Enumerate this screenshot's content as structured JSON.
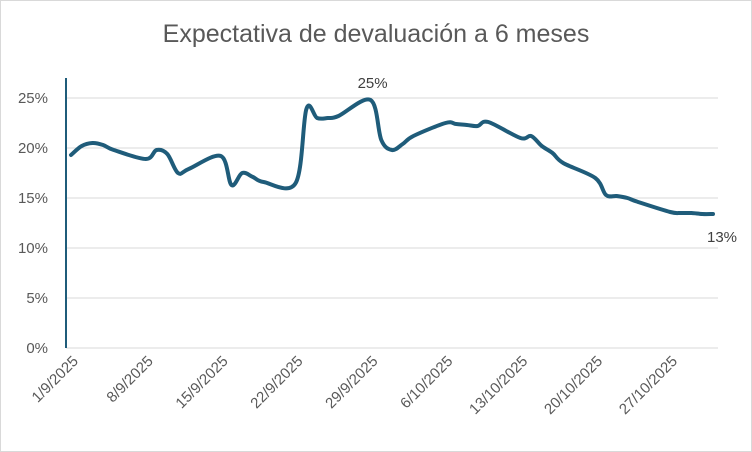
{
  "chart_data": {
    "type": "line",
    "title": "Expectativa de devaluación a 6 meses",
    "xlabel": "",
    "ylabel": "",
    "ylim": [
      0,
      25
    ],
    "yticks": [
      "0%",
      "5%",
      "10%",
      "15%",
      "20%",
      "25%"
    ],
    "yticks_values": [
      0,
      5,
      10,
      15,
      20,
      25
    ],
    "xticks": [
      "1/9/2025",
      "8/9/2025",
      "15/9/2025",
      "22/9/2025",
      "29/9/2025",
      "6/10/2025",
      "13/10/2025",
      "20/10/2025",
      "27/10/2025"
    ],
    "grid": true,
    "legend": "none",
    "line_color": "#1f5c7a",
    "series": [
      {
        "x": [
          "1/9/2025",
          "2/9/2025",
          "3/9/2025",
          "4/9/2025",
          "5/9/2025",
          "8/9/2025",
          "9/9/2025",
          "10/9/2025",
          "11/9/2025",
          "12/9/2025",
          "15/9/2025",
          "16/9/2025",
          "17/9/2025",
          "18/9/2025",
          "19/9/2025",
          "22/9/2025",
          "23/9/2025",
          "24/9/2025",
          "25/9/2025",
          "26/9/2025",
          "29/9/2025",
          "30/9/2025",
          "1/10/2025",
          "2/10/2025",
          "3/10/2025",
          "6/10/2025",
          "7/10/2025",
          "8/10/2025",
          "9/10/2025",
          "10/10/2025",
          "13/10/2025",
          "14/10/2025",
          "15/10/2025",
          "16/10/2025",
          "17/10/2025",
          "20/10/2025",
          "21/10/2025",
          "22/10/2025",
          "23/10/2025",
          "24/10/2025",
          "27/10/2025",
          "28/10/2025",
          "29/10/2025",
          "30/10/2025",
          "31/10/2025"
        ],
        "values": [
          19.3,
          20.2,
          20.5,
          20.3,
          19.8,
          18.9,
          19.8,
          19.4,
          17.5,
          17.9,
          19.2,
          16.3,
          17.5,
          17.1,
          16.6,
          16.5,
          23.9,
          23.0,
          23.0,
          23.2,
          24.8,
          20.8,
          19.8,
          20.4,
          21.2,
          22.5,
          22.4,
          22.3,
          22.2,
          22.6,
          21.0,
          21.2,
          20.2,
          19.5,
          18.5,
          17.0,
          15.3,
          15.2,
          15.0,
          14.6,
          13.6,
          13.5,
          13.5,
          13.4,
          13.4
        ]
      }
    ],
    "annotations": [
      {
        "text": "25%",
        "x": "29/9/2025",
        "y": 24.8
      },
      {
        "text": "13%",
        "x": "31/10/2025",
        "y": 13.4
      }
    ]
  }
}
